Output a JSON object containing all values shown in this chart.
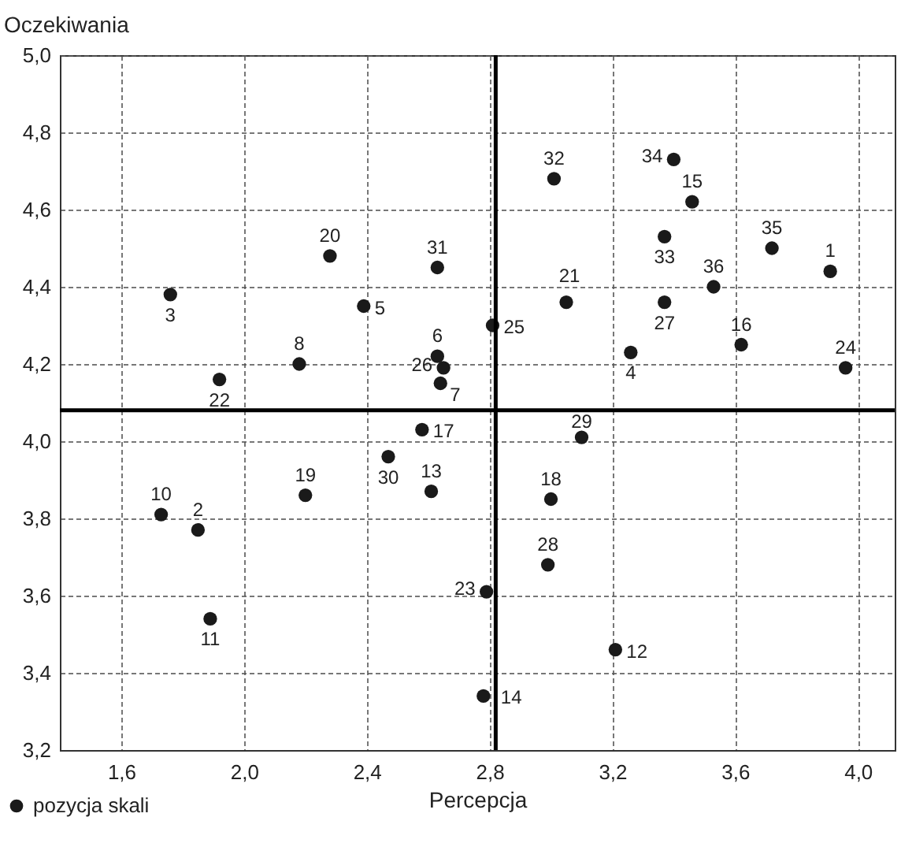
{
  "chart_data": {
    "type": "scatter",
    "xlabel": "Percepcja",
    "ylabel": "Oczekiwania",
    "xlim": [
      1.4,
      4.12
    ],
    "xticks": [
      {
        "value": 1.6,
        "label": "1,6"
      },
      {
        "value": 2.0,
        "label": "2,0"
      },
      {
        "value": 2.4,
        "label": "2,4"
      },
      {
        "value": 2.8,
        "label": "2,8"
      },
      {
        "value": 3.2,
        "label": "3,2"
      },
      {
        "value": 3.6,
        "label": "3,6"
      },
      {
        "value": 4.0,
        "label": "4,0"
      }
    ],
    "ylim": [
      3.2,
      5.0
    ],
    "yticks": [
      {
        "value": 3.2,
        "label": "3,2"
      },
      {
        "value": 3.4,
        "label": "3,4"
      },
      {
        "value": 3.6,
        "label": "3,6"
      },
      {
        "value": 3.8,
        "label": "3,8"
      },
      {
        "value": 4.0,
        "label": "4,0"
      },
      {
        "value": 4.2,
        "label": "4,2"
      },
      {
        "value": 4.4,
        "label": "4,4"
      },
      {
        "value": 4.6,
        "label": "4,6"
      },
      {
        "value": 4.8,
        "label": "4,8"
      },
      {
        "value": 5.0,
        "label": "5,0"
      }
    ],
    "grid": true,
    "legend": "bottom left",
    "marker": "circle",
    "ref_lines": [
      {
        "axis": "x",
        "value": 2.82,
        "color": "#000000"
      },
      {
        "axis": "y",
        "value": 4.08,
        "color": "#000000"
      }
    ],
    "series": [
      {
        "name": "pozycja skali",
        "color": "#1a1a1a",
        "x": [
          3.91,
          1.85,
          1.76,
          3.26,
          2.39,
          2.63,
          2.64,
          2.18,
          1.73,
          1.89,
          3.21,
          2.61,
          2.78,
          3.46,
          3.62,
          2.58,
          3.0,
          2.2,
          2.28,
          3.05,
          1.92,
          2.79,
          3.96,
          2.81,
          2.65,
          3.37,
          2.99,
          3.1,
          2.47,
          2.63,
          3.01,
          3.37,
          3.4,
          3.72,
          3.53
        ],
        "values": [
          4.44,
          3.77,
          4.38,
          4.23,
          4.35,
          4.22,
          4.15,
          4.2,
          3.81,
          3.54,
          3.46,
          3.87,
          3.34,
          4.62,
          4.25,
          4.03,
          3.85,
          3.86,
          4.48,
          4.36,
          4.16,
          3.61,
          4.19,
          4.3,
          4.19,
          4.36,
          3.68,
          4.01,
          3.96,
          4.45,
          4.68,
          4.53,
          4.73,
          4.5,
          4.4
        ]
      }
    ],
    "annotations": [
      {
        "text": "1",
        "x": 3.91,
        "y": 4.44
      },
      {
        "text": "2",
        "x": 1.85,
        "y": 3.77
      },
      {
        "text": "3",
        "x": 1.76,
        "y": 4.38
      },
      {
        "text": "4",
        "x": 3.26,
        "y": 4.23
      },
      {
        "text": "5",
        "x": 2.39,
        "y": 4.35
      },
      {
        "text": "6",
        "x": 2.63,
        "y": 4.22
      },
      {
        "text": "7",
        "x": 2.64,
        "y": 4.15
      },
      {
        "text": "8",
        "x": 2.18,
        "y": 4.2
      },
      {
        "text": "10",
        "x": 1.73,
        "y": 3.81
      },
      {
        "text": "11",
        "x": 1.89,
        "y": 3.54
      },
      {
        "text": "12",
        "x": 3.21,
        "y": 3.46
      },
      {
        "text": "13",
        "x": 2.61,
        "y": 3.87
      },
      {
        "text": "14",
        "x": 2.78,
        "y": 3.34
      },
      {
        "text": "15",
        "x": 3.46,
        "y": 4.62
      },
      {
        "text": "16",
        "x": 3.62,
        "y": 4.25
      },
      {
        "text": "17",
        "x": 2.58,
        "y": 4.03
      },
      {
        "text": "18",
        "x": 3.0,
        "y": 3.85
      },
      {
        "text": "19",
        "x": 2.2,
        "y": 3.86
      },
      {
        "text": "20",
        "x": 2.28,
        "y": 4.48
      },
      {
        "text": "21",
        "x": 3.05,
        "y": 4.36
      },
      {
        "text": "22",
        "x": 1.92,
        "y": 4.16
      },
      {
        "text": "23",
        "x": 2.79,
        "y": 3.61
      },
      {
        "text": "24",
        "x": 3.96,
        "y": 4.19
      },
      {
        "text": "25",
        "x": 2.81,
        "y": 4.3
      },
      {
        "text": "26",
        "x": 2.65,
        "y": 4.19
      },
      {
        "text": "27",
        "x": 3.37,
        "y": 4.36
      },
      {
        "text": "28",
        "x": 2.99,
        "y": 3.68
      },
      {
        "text": "29",
        "x": 3.1,
        "y": 4.01
      },
      {
        "text": "30",
        "x": 2.47,
        "y": 3.96
      },
      {
        "text": "31",
        "x": 2.63,
        "y": 4.45
      },
      {
        "text": "32",
        "x": 3.01,
        "y": 4.68
      },
      {
        "text": "33",
        "x": 3.37,
        "y": 4.53
      },
      {
        "text": "34",
        "x": 3.4,
        "y": 4.73
      },
      {
        "text": "35",
        "x": 3.72,
        "y": 4.5
      },
      {
        "text": "36",
        "x": 3.53,
        "y": 4.4
      }
    ]
  }
}
